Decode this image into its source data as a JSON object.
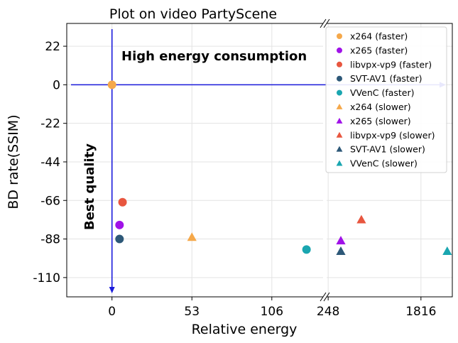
{
  "chart_data": {
    "type": "scatter",
    "title": "Plot on video PartyScene",
    "xlabel": "Relative energy",
    "ylabel": "BD rate(SSIM)",
    "ylim": [
      -121,
      35
    ],
    "y_ticks": [
      22,
      0,
      -22,
      -44,
      -66,
      -88,
      -110
    ],
    "x_ticks_left": [
      "0",
      "53",
      "106"
    ],
    "x_ticks_right": [
      "248",
      "1816"
    ],
    "xlim_left": [
      -30,
      140
    ],
    "xlim_right": [
      -30,
      2430
    ],
    "axis_break": true,
    "grid": true,
    "legend_position": "top-right",
    "annotations": {
      "top": "High energy consumption",
      "left": "Best quality"
    },
    "reference_lines": {
      "x": 0,
      "y": 0,
      "color": "#1a1adb"
    },
    "series": [
      {
        "name": "x264 (faster)",
        "marker": "circle",
        "color": "#f5a84a",
        "points": [
          {
            "panel": "left",
            "x": 0,
            "y": 0
          }
        ]
      },
      {
        "name": "x265 (faster)",
        "marker": "circle",
        "color": "#a012e8",
        "points": [
          {
            "panel": "left",
            "x": 5,
            "y": -80
          }
        ]
      },
      {
        "name": "libvpx-vp9 (faster)",
        "marker": "circle",
        "color": "#e8563f",
        "points": [
          {
            "panel": "left",
            "x": 7,
            "y": -67
          }
        ]
      },
      {
        "name": "SVT-AV1 (faster)",
        "marker": "circle",
        "color": "#2d5878",
        "points": [
          {
            "panel": "left",
            "x": 5,
            "y": -88
          }
        ]
      },
      {
        "name": "VVenC (faster)",
        "marker": "circle",
        "color": "#1aa6b0",
        "points": [
          {
            "panel": "left",
            "x": 129,
            "y": -94
          }
        ]
      },
      {
        "name": "x264 (slower)",
        "marker": "triangle",
        "color": "#f5a84a",
        "points": [
          {
            "panel": "left",
            "x": 53,
            "y": -87
          }
        ]
      },
      {
        "name": "x265 (slower)",
        "marker": "triangle",
        "color": "#a012e8",
        "points": [
          {
            "panel": "right",
            "x": 248,
            "y": -89
          }
        ]
      },
      {
        "name": "libvpx-vp9 (slower)",
        "marker": "triangle",
        "color": "#e8563f",
        "points": [
          {
            "panel": "right",
            "x": 650,
            "y": -77
          }
        ]
      },
      {
        "name": "SVT-AV1 (slower)",
        "marker": "triangle",
        "color": "#2d5878",
        "points": [
          {
            "panel": "right",
            "x": 248,
            "y": -95
          }
        ]
      },
      {
        "name": "VVenC (slower)",
        "marker": "triangle",
        "color": "#1aa6b0",
        "points": [
          {
            "panel": "right",
            "x": 2330,
            "y": -95
          }
        ]
      }
    ]
  }
}
